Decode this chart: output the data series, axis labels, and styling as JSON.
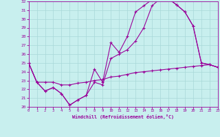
{
  "xlabel": "Windchill (Refroidissement éolien,°C)",
  "bg_color": "#c8efee",
  "grid_color": "#a8d8d8",
  "line_color": "#990099",
  "xlim": [
    0,
    23
  ],
  "ylim": [
    20,
    32
  ],
  "xticks": [
    0,
    1,
    2,
    3,
    4,
    5,
    6,
    7,
    8,
    9,
    10,
    11,
    12,
    13,
    14,
    15,
    16,
    17,
    18,
    19,
    20,
    21,
    22,
    23
  ],
  "yticks": [
    20,
    21,
    22,
    23,
    24,
    25,
    26,
    27,
    28,
    29,
    30,
    31,
    32
  ],
  "curve1_x": [
    0,
    1,
    2,
    3,
    4,
    5,
    6,
    7,
    8,
    9,
    10,
    11,
    12,
    13,
    14,
    15,
    16,
    17,
    18,
    19,
    20,
    21,
    22,
    23
  ],
  "curve1_y": [
    25.0,
    22.8,
    21.8,
    22.2,
    21.5,
    20.2,
    20.8,
    21.3,
    24.3,
    22.8,
    27.3,
    26.2,
    28.0,
    30.8,
    31.5,
    32.2,
    32.3,
    32.3,
    31.6,
    30.8,
    29.2,
    25.0,
    24.8,
    24.5
  ],
  "curve2_x": [
    0,
    1,
    2,
    3,
    4,
    5,
    6,
    7,
    8,
    9,
    10,
    11,
    12,
    13,
    14,
    15,
    16,
    17,
    18,
    19,
    20,
    21,
    22,
    23
  ],
  "curve2_y": [
    25.0,
    22.8,
    21.8,
    22.2,
    21.5,
    20.2,
    20.8,
    21.3,
    22.8,
    22.5,
    25.5,
    26.0,
    26.5,
    27.5,
    29.0,
    31.5,
    32.3,
    32.3,
    31.6,
    30.8,
    29.2,
    25.0,
    24.8,
    24.5
  ],
  "curve3_x": [
    0,
    1,
    2,
    3,
    4,
    5,
    6,
    7,
    8,
    9,
    10,
    11,
    12,
    13,
    14,
    15,
    16,
    17,
    18,
    19,
    20,
    21,
    22,
    23
  ],
  "curve3_y": [
    25.0,
    22.8,
    22.8,
    22.8,
    22.5,
    22.5,
    22.7,
    22.8,
    23.0,
    23.1,
    23.4,
    23.5,
    23.7,
    23.9,
    24.0,
    24.1,
    24.2,
    24.3,
    24.4,
    24.5,
    24.6,
    24.7,
    24.8,
    24.5
  ]
}
